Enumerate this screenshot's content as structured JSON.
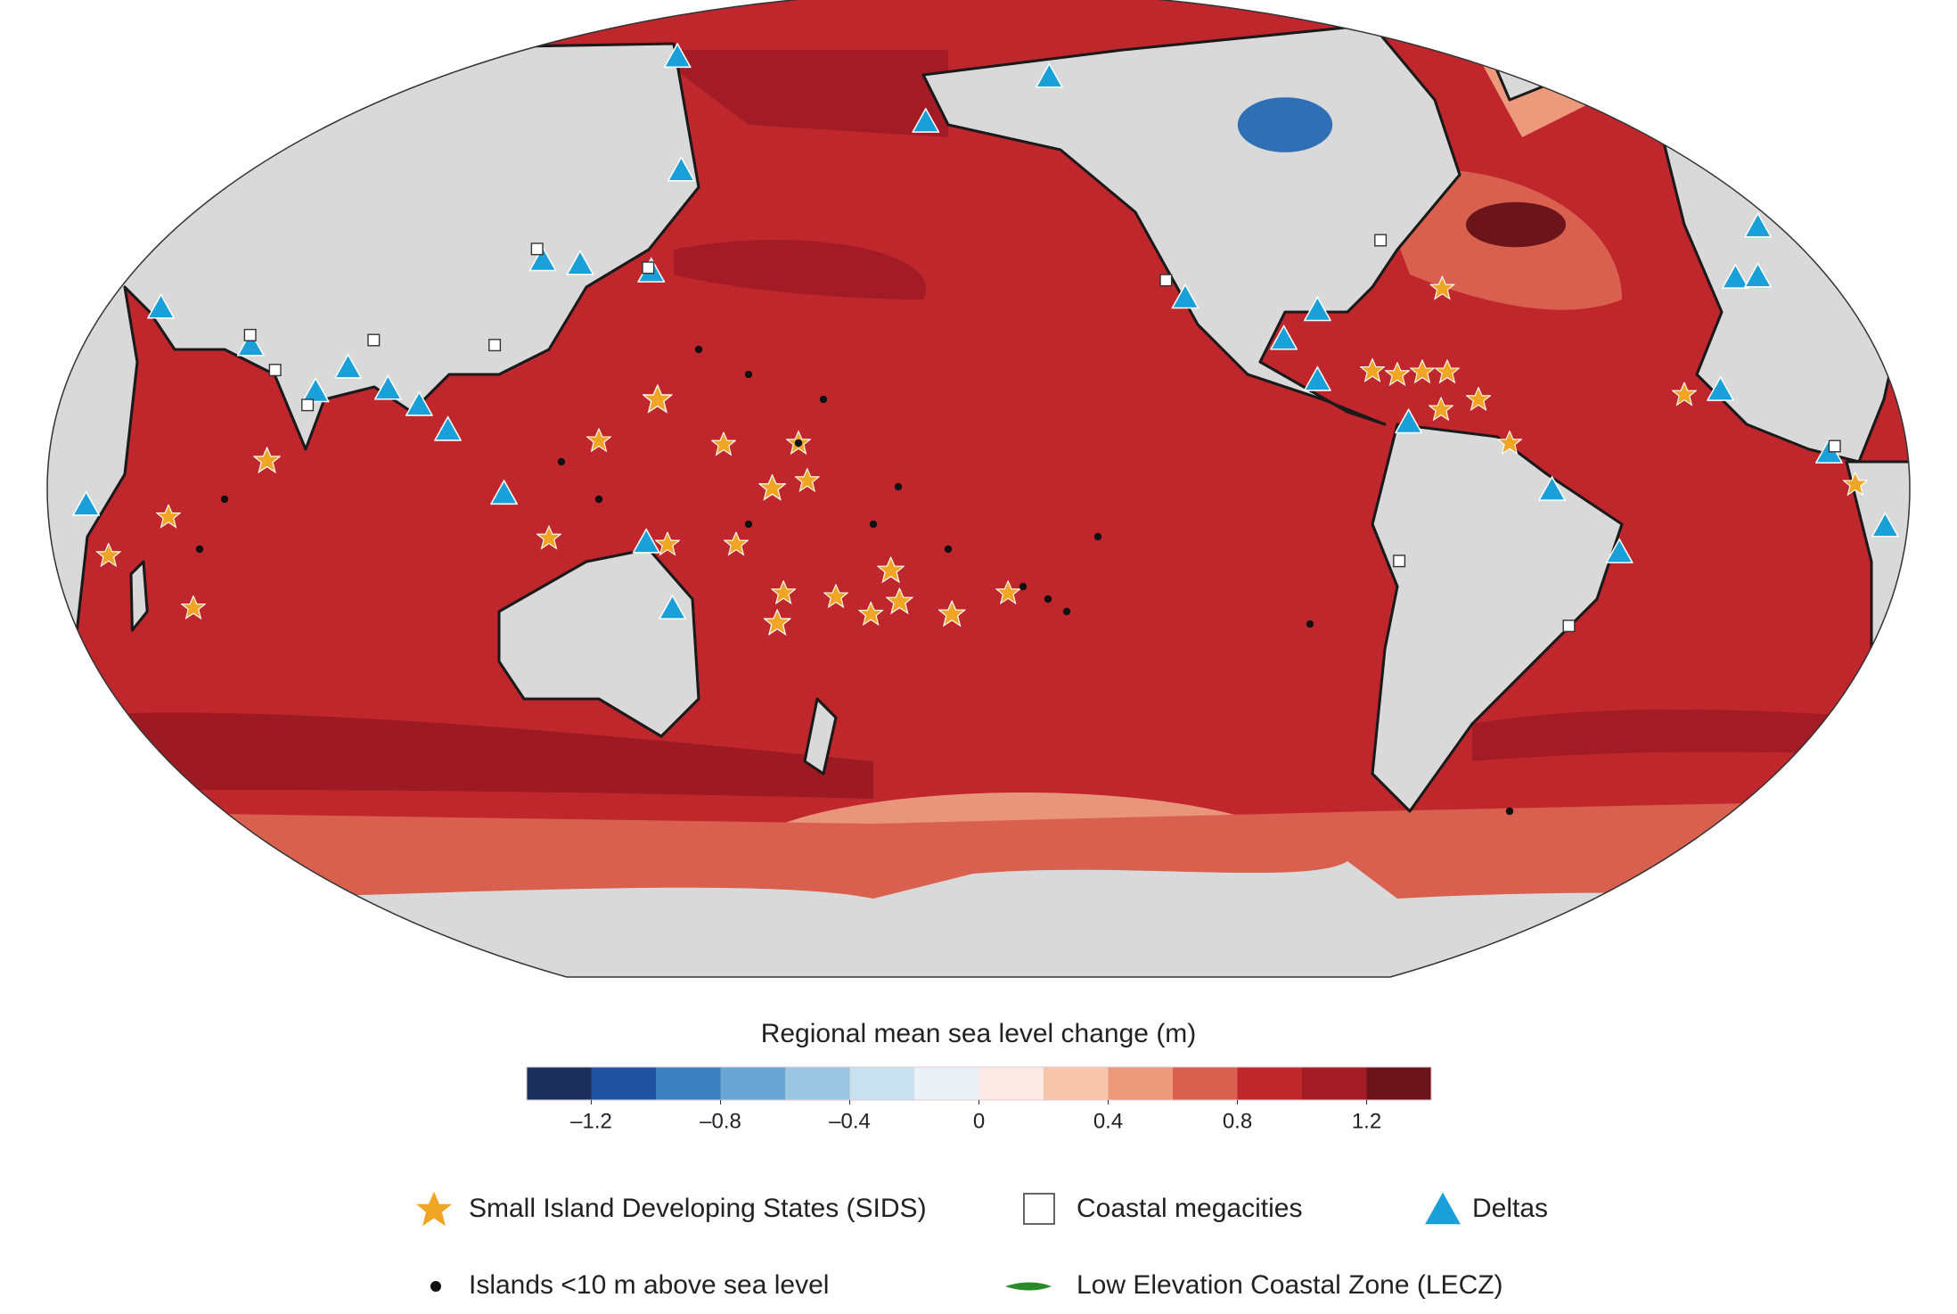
{
  "colorbar": {
    "title": "Regional mean sea level change (m)",
    "range": [
      -1.4,
      1.4
    ],
    "colors": [
      "#1b2f5a",
      "#1f53a0",
      "#3a7fc0",
      "#6aa6d4",
      "#9bc6e2",
      "#c9e0ef",
      "#eaf0f3",
      "#faeae3",
      "#f6c5ab",
      "#ec9a7b",
      "#d9604e",
      "#c0272d",
      "#a31b24",
      "#6b1419"
    ],
    "ticks": [
      {
        "value": -1.2,
        "label": "–1.2"
      },
      {
        "value": -0.8,
        "label": "–0.8"
      },
      {
        "value": -0.4,
        "label": "–0.4"
      },
      0,
      0.4,
      0.8,
      1.2
    ]
  },
  "legend": [
    "Small Island Developing States (SIDS)",
    "Coastal megacities",
    "Deltas",
    "Islands <10 m above sea level",
    "Low Elevation Coastal Zone (LECZ)"
  ]
}
